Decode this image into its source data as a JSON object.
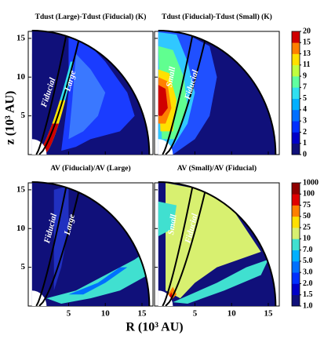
{
  "chart_data": {
    "type": "heatmap",
    "xlabel": "R (10³ AU)",
    "ylabel": "z (10³ AU)",
    "xlim": [
      -0.5,
      16.5
    ],
    "ylim": [
      0,
      15.9
    ],
    "xticks": [
      5,
      10,
      15
    ],
    "yticks": [
      5,
      10,
      15
    ],
    "panels": [
      {
        "title": "Tdust (Large)-Tdust (Fiducial) (K)",
        "annotations": [
          "Fiducial",
          "Large"
        ]
      },
      {
        "title": "Tdust (Fiducial)-Tdust (Small) (K)",
        "annotations": [
          "Small",
          "Fiducial"
        ]
      },
      {
        "title": "AV (Fiducial)/AV (Large)",
        "annotations": [
          "Fiducial",
          "Large"
        ]
      },
      {
        "title": "AV (Small)/AV (Fiducial)",
        "annotations": [
          "Small",
          "Fiducial"
        ]
      }
    ],
    "colorbars": [
      {
        "ticks": [
          0,
          1,
          2,
          3,
          4,
          5,
          7,
          9,
          11,
          13,
          15,
          20
        ],
        "colors": [
          "#10107a",
          "#0000c8",
          "#0030ff",
          "#0070ff",
          "#00b0ff",
          "#30e0f0",
          "#60ffa0",
          "#c0ff40",
          "#ffe000",
          "#ff8000",
          "#d00000"
        ]
      },
      {
        "ticks": [
          {
            "value": 1.0,
            "label": "1.0"
          },
          {
            "value": 1.5,
            "label": "1.5"
          },
          {
            "value": 2.0,
            "label": "2.0"
          },
          {
            "value": 3.0,
            "label": "3.0"
          },
          {
            "value": 5.0,
            "label": "5.0"
          },
          {
            "value": 7.0,
            "label": "7.0"
          },
          10,
          25,
          50,
          75,
          100,
          1000
        ],
        "colors": [
          "#10107a",
          "#0000c8",
          "#0030ff",
          "#0070ff",
          "#00b0ff",
          "#40e0d0",
          "#d8f070",
          "#ffe000",
          "#ff8000",
          "#e00000",
          "#900000"
        ]
      }
    ]
  }
}
